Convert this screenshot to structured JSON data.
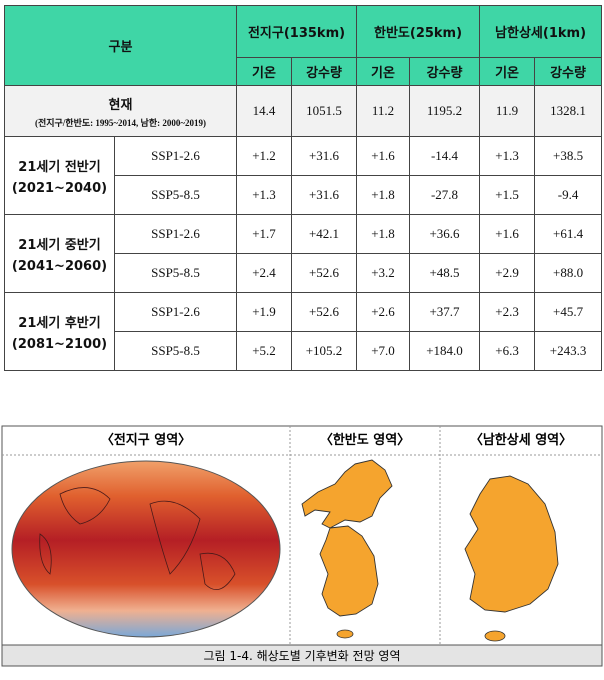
{
  "table": {
    "group_label": "구분",
    "regions": [
      "전지구(135km)",
      "한반도(25km)",
      "남한상세(1km)"
    ],
    "variables": [
      "기온",
      "강수량"
    ],
    "current": {
      "label": "현재",
      "note": "(전지구/한반도: 1995~2014, 남한: 2000~2019)",
      "values": [
        14.4,
        1051.5,
        11.2,
        1195.2,
        11.9,
        1328.1
      ]
    },
    "periods": [
      {
        "label": "21세기 전반기",
        "years": "(2021~2040)",
        "rows": [
          {
            "scenario": "SSP1-2.6",
            "values": [
              "+1.2",
              "+31.6",
              "+1.6",
              "-14.4",
              "+1.3",
              "+38.5"
            ]
          },
          {
            "scenario": "SSP5-8.5",
            "values": [
              "+1.3",
              "+31.6",
              "+1.8",
              "-27.8",
              "+1.5",
              "-9.4"
            ]
          }
        ]
      },
      {
        "label": "21세기 중반기",
        "years": "(2041~2060)",
        "rows": [
          {
            "scenario": "SSP1-2.6",
            "values": [
              "+1.7",
              "+42.1",
              "+1.8",
              "+36.6",
              "+1.6",
              "+61.4"
            ]
          },
          {
            "scenario": "SSP5-8.5",
            "values": [
              "+2.4",
              "+52.6",
              "+3.2",
              "+48.5",
              "+2.9",
              "+88.0"
            ]
          }
        ]
      },
      {
        "label": "21세기 후반기",
        "years": "(2081~2100)",
        "rows": [
          {
            "scenario": "SSP1-2.6",
            "values": [
              "+1.9",
              "+52.6",
              "+2.6",
              "+37.7",
              "+2.3",
              "+45.7"
            ]
          },
          {
            "scenario": "SSP5-8.5",
            "values": [
              "+5.2",
              "+105.2",
              "+7.0",
              "+184.0",
              "+6.3",
              "+243.3"
            ]
          }
        ]
      }
    ]
  },
  "figure": {
    "panels": [
      "〈전지구 영역〉",
      "〈한반도 영역〉",
      "〈남한상세 영역〉"
    ],
    "caption": "그림 1-4. 해상도별 기후변화 전망 영역"
  }
}
